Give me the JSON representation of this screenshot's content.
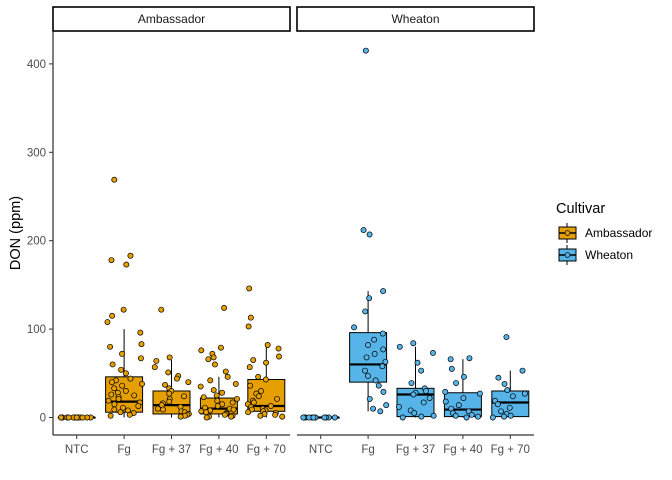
{
  "chart_data": {
    "type": "box",
    "ylabel": "DON (ppm)",
    "xlabel": "",
    "ylim": [
      -20,
      440
    ],
    "yticks": [
      0,
      100,
      200,
      300,
      400
    ],
    "grid": false,
    "legend": {
      "title": "Cultivar",
      "placement": "right",
      "entries": [
        {
          "name": "Ambassador",
          "color": "#E69F00"
        },
        {
          "name": "Wheaton",
          "color": "#56B4E9"
        }
      ]
    },
    "categories": [
      "NTC",
      "Fg",
      "Fg + 37",
      "Fg + 40",
      "Fg + 70"
    ],
    "panels": [
      {
        "name": "Ambassador",
        "color": "#E69F00",
        "boxes": [
          {
            "category": "NTC",
            "q1": 0,
            "median": 0,
            "q3": 0,
            "whisker_low": 0,
            "whisker_high": 0,
            "points": [
              0,
              0,
              0,
              0,
              0,
              0,
              0,
              0,
              0,
              0,
              0,
              0,
              0,
              0,
              0
            ]
          },
          {
            "category": "Fg",
            "q1": 6,
            "median": 18,
            "q3": 46,
            "whisker_low": 0,
            "whisker_high": 100,
            "points": [
              269,
              183,
              178,
              173,
              122,
              115,
              108,
              96,
              83,
              80,
              72,
              67,
              60,
              54,
              50,
              44,
              42,
              40,
              38,
              36,
              33,
              30,
              28,
              26,
              25,
              23,
              21,
              19,
              17,
              15,
              13,
              11,
              9,
              8,
              6,
              5,
              3,
              2
            ]
          },
          {
            "category": "Fg + 37",
            "q1": 4,
            "median": 14,
            "q3": 30,
            "whisker_low": 0,
            "whisker_high": 65,
            "points": [
              122,
              68,
              64,
              57,
              51,
              47,
              44,
              40,
              37,
              33,
              30,
              27,
              24,
              21,
              18,
              16,
              14,
              12,
              10,
              9,
              7,
              6,
              4,
              3,
              2,
              1
            ]
          },
          {
            "category": "Fg + 40",
            "q1": 4,
            "median": 10,
            "q3": 22,
            "whisker_low": 0,
            "whisker_high": 46,
            "points": [
              124,
              79,
              76,
              72,
              68,
              66,
              60,
              52,
              46,
              42,
              38,
              35,
              31,
              28,
              25,
              23,
              21,
              19,
              17,
              15,
              13,
              11,
              10,
              9,
              8,
              7,
              6,
              5,
              4,
              3,
              2,
              1,
              1,
              0
            ]
          },
          {
            "category": "Fg + 70",
            "q1": 7,
            "median": 13,
            "q3": 43,
            "whisker_low": 0,
            "whisker_high": 82,
            "points": [
              146,
              113,
              103,
              82,
              78,
              69,
              65,
              62,
              57,
              46,
              43,
              36,
              30,
              27,
              24,
              21,
              19,
              17,
              15,
              13,
              12,
              10,
              9,
              8,
              7,
              6,
              5,
              4,
              3,
              2,
              1
            ]
          }
        ]
      },
      {
        "name": "Wheaton",
        "color": "#56B4E9",
        "boxes": [
          {
            "category": "NTC",
            "q1": 0,
            "median": 0,
            "q3": 0,
            "whisker_low": 0,
            "whisker_high": 0,
            "points": [
              0,
              0,
              0,
              0,
              0,
              0,
              0,
              0,
              0,
              0,
              0,
              0
            ]
          },
          {
            "category": "Fg",
            "q1": 40,
            "median": 60,
            "q3": 96,
            "whisker_low": 7,
            "whisker_high": 143,
            "points": [
              415,
              212,
              207,
              143,
              135,
              120,
              102,
              95,
              88,
              82,
              77,
              72,
              68,
              63,
              58,
              53,
              47,
              42,
              36,
              29,
              21,
              14,
              10,
              7
            ]
          },
          {
            "category": "Fg + 37",
            "q1": 1,
            "median": 26,
            "q3": 33,
            "whisker_low": 0,
            "whisker_high": 80,
            "points": [
              84,
              80,
              73,
              62,
              53,
              39,
              33,
              30,
              28,
              26,
              22,
              17,
              12,
              8,
              5,
              2,
              1,
              0
            ]
          },
          {
            "category": "Fg + 40",
            "q1": 1,
            "median": 9,
            "q3": 28,
            "whisker_low": 0,
            "whisker_high": 66,
            "points": [
              67,
              66,
              55,
              46,
              39,
              29,
              27,
              22,
              18,
              14,
              10,
              7,
              5,
              3,
              2,
              1,
              0
            ]
          },
          {
            "category": "Fg + 70",
            "q1": 1,
            "median": 17,
            "q3": 30,
            "whisker_low": 0,
            "whisker_high": 53,
            "points": [
              91,
              53,
              45,
              38,
              31,
              27,
              24,
              19,
              15,
              11,
              7,
              4,
              2,
              1,
              0
            ]
          }
        ]
      }
    ]
  }
}
